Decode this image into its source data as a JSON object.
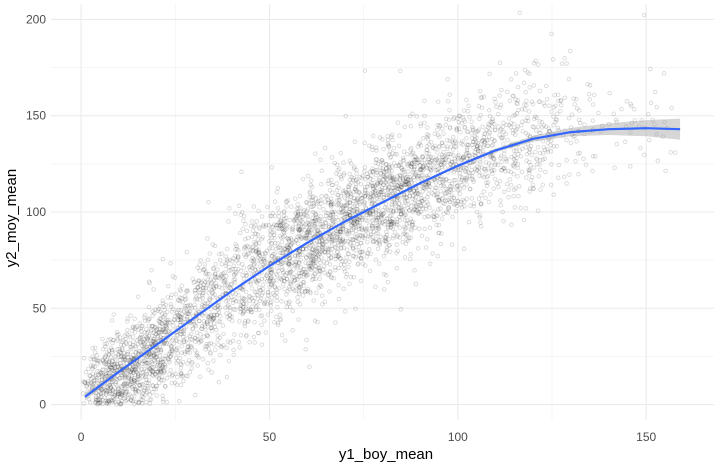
{
  "chart_data": {
    "type": "scatter",
    "title": "",
    "xlabel": "y1_boy_mean",
    "ylabel": "y2_moy_mean",
    "xlim": [
      -8,
      168
    ],
    "ylim": [
      -8,
      208
    ],
    "x_ticks": [
      0,
      50,
      100,
      150
    ],
    "y_ticks": [
      0,
      50,
      100,
      150,
      200
    ],
    "x_tick_labels": [
      "0",
      "50",
      "100",
      "150"
    ],
    "y_tick_labels": [
      "0",
      "50",
      "100",
      "150",
      "200"
    ],
    "grid": true,
    "legend": "none",
    "point_color": "#000000",
    "point_alpha": 0.15,
    "n_points_approx": 4000,
    "series": [
      {
        "kind": "scatter",
        "density_profile": {
          "x": [
            2,
            10,
            20,
            30,
            40,
            50,
            60,
            70,
            80,
            90,
            100,
            110,
            120,
            130,
            140
          ],
          "y_center": [
            10,
            16,
            28,
            45,
            60,
            73,
            83,
            94,
            105,
            115,
            124,
            133,
            140,
            145,
            146
          ],
          "y_spread": [
            10,
            11,
            12,
            14,
            15,
            15,
            15,
            14,
            14,
            14,
            14,
            15,
            16,
            15,
            12
          ],
          "relative_density": [
            0.3,
            1.0,
            1.0,
            0.55,
            0.55,
            0.7,
            0.8,
            0.9,
            0.9,
            0.8,
            0.6,
            0.4,
            0.3,
            0.12,
            0.04
          ]
        }
      },
      {
        "kind": "smooth",
        "color": "#3366ff",
        "ribbon_color": "#999999",
        "x": [
          1,
          10,
          20,
          30,
          40,
          50,
          60,
          70,
          80,
          90,
          100,
          110,
          120,
          130,
          140,
          150,
          159
        ],
        "y": [
          4,
          17,
          31,
          45,
          59,
          72,
          84,
          95,
          105,
          115,
          124,
          132,
          138,
          141.5,
          143,
          143.5,
          143
        ],
        "ci_half_width": [
          2,
          1,
          0.6,
          0.5,
          0.5,
          0.5,
          0.5,
          0.5,
          0.5,
          0.6,
          0.7,
          1,
          1.5,
          2.2,
          3,
          4.2,
          5.5
        ]
      }
    ]
  }
}
